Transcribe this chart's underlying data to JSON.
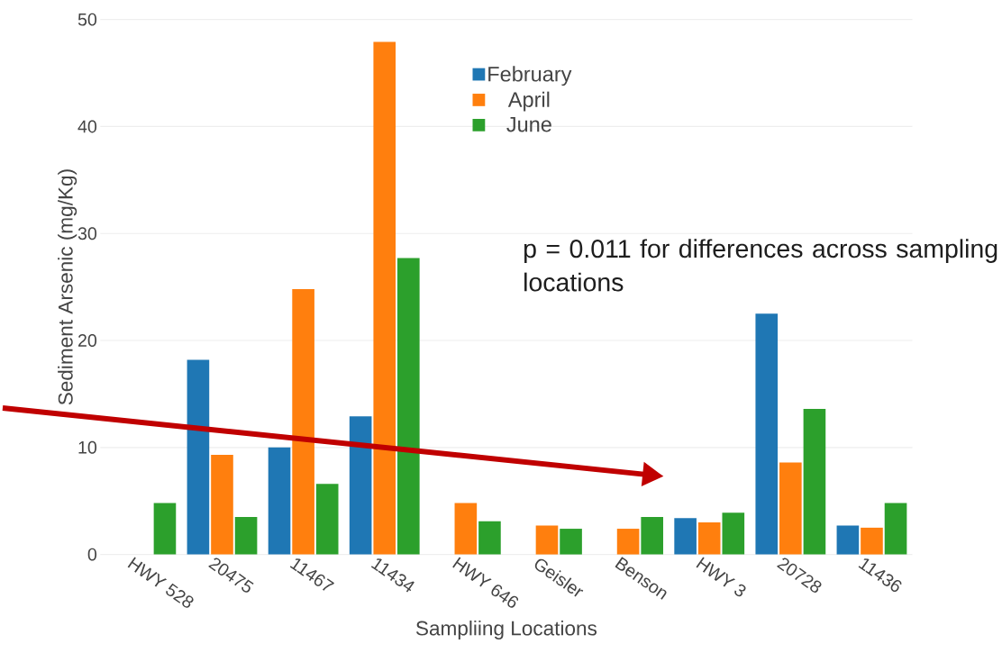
{
  "chart_data": {
    "type": "bar",
    "categories": [
      "HWY 528",
      "20475",
      "11467",
      "11434",
      "HWY 646",
      "Geisler",
      "Benson",
      "HWY 3",
      "20728",
      "11436"
    ],
    "series": [
      {
        "name": "February",
        "color": "#1f77b4",
        "values": [
          null,
          18.2,
          10.0,
          12.9,
          null,
          null,
          null,
          3.4,
          22.5,
          2.7
        ]
      },
      {
        "name": "April",
        "color": "#ff7f0e",
        "values": [
          null,
          9.3,
          24.8,
          47.9,
          4.8,
          2.7,
          2.4,
          3.0,
          8.6,
          2.5
        ]
      },
      {
        "name": "June",
        "color": "#2ca02c",
        "values": [
          4.8,
          3.5,
          6.6,
          27.7,
          3.1,
          2.4,
          3.5,
          3.9,
          13.6,
          4.8
        ]
      }
    ],
    "xlabel": "Sampliing Locations",
    "ylabel": "Sediment Arsenic (mg/Kg)",
    "ylim": [
      0,
      50
    ],
    "yticks": [
      0,
      10,
      20,
      30,
      40,
      50
    ],
    "grid": "y",
    "legend": "top",
    "annotations": [
      "p = 0.011 for differences across sampling locations"
    ]
  }
}
